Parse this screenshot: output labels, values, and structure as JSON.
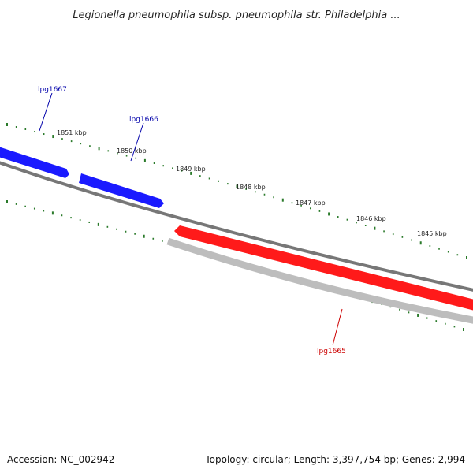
{
  "title": "Legionella pneumophila subsp. pneumophila str. Philadelphia ...",
  "footer": {
    "accession": "Accession: NC_002942",
    "summary": "Topology: circular; Length: 3,397,754 bp; Genes: 2,994"
  },
  "colors": {
    "forward_gene": "#1a1aff",
    "reverse_gene": "#ff1a1a",
    "backbone": "#777777",
    "reverse_track": "#bdbdbd",
    "tick": "#2a7a2a"
  },
  "kbp_labels": [
    "1851 kbp",
    "1850 kbp",
    "1849 kbp",
    "1848 kbp",
    "1847 kbp",
    "1846 kbp",
    "1845 kbp"
  ],
  "genes": [
    {
      "name": "lpg1667",
      "strand": "forward"
    },
    {
      "name": "lpg1666",
      "strand": "forward"
    },
    {
      "name": "lpg1665",
      "strand": "reverse"
    }
  ]
}
